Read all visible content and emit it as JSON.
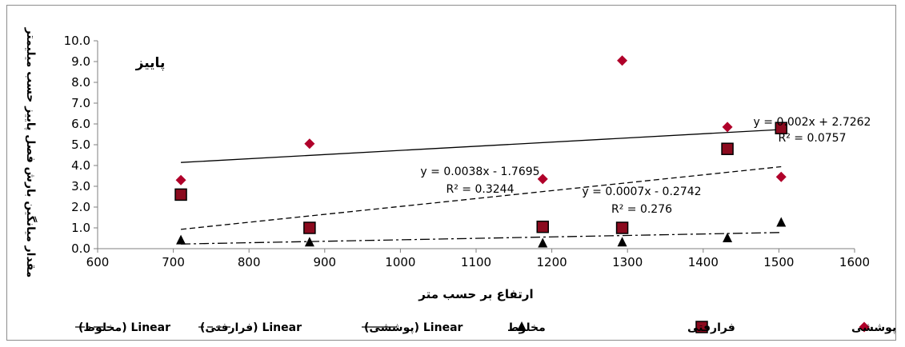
{
  "chart_data": {
    "type": "scatter",
    "title": "پاییز",
    "xlabel": "ارتفاع بر حسب متر",
    "ylabel": "مقدار میانگین بارش فصل پاییز حسب میلیمتر",
    "xlim": [
      600,
      1600
    ],
    "ylim": [
      0,
      10
    ],
    "xticks": [
      "600",
      "700",
      "800",
      "900",
      "1000",
      "1100",
      "1200",
      "1300",
      "1400",
      "1500",
      "1600"
    ],
    "yticks": [
      "0.0",
      "1.0",
      "2.0",
      "3.0",
      "4.0",
      "5.0",
      "6.0",
      "7.0",
      "8.0",
      "9.0",
      "10.0"
    ],
    "grid": false,
    "legend_position": "bottom",
    "series": [
      {
        "name": "پوششی",
        "marker": "diamond",
        "color": "#b0002a",
        "x": [
          710,
          880,
          1188,
          1293,
          1432,
          1503
        ],
        "y": [
          3.3,
          5.05,
          3.35,
          9.05,
          5.85,
          3.45
        ]
      },
      {
        "name": "فرارفتی",
        "marker": "square",
        "color": "#8b0a1e",
        "x": [
          710,
          880,
          1188,
          1293,
          1432,
          1503
        ],
        "y": [
          2.6,
          1.0,
          1.05,
          1.0,
          4.8,
          5.8
        ]
      },
      {
        "name": "مخلوط",
        "marker": "triangle",
        "color": "#000000",
        "x": [
          710,
          880,
          1188,
          1293,
          1432,
          1503
        ],
        "y": [
          0.4,
          0.3,
          0.25,
          0.3,
          0.5,
          1.25
        ]
      }
    ],
    "trendlines": [
      {
        "name": "Linear (پوششی)",
        "style": "solid",
        "slope": 0.002,
        "intercept": 2.7262,
        "x_range": [
          710,
          1503
        ],
        "equation": "y = 0.002x + 2.7262",
        "r2": "R² = 0.0757"
      },
      {
        "name": "Linear (فرارفتی)",
        "style": "dashed",
        "slope": 0.0038,
        "intercept": -1.7695,
        "x_range": [
          710,
          1503
        ],
        "equation": "y = 0.0038x - 1.7695",
        "r2": "R² = 0.3244"
      },
      {
        "name": "Linear (مخلوط)",
        "style": "dashdot",
        "slope": 0.0007,
        "intercept": -0.2742,
        "x_range": [
          710,
          1503
        ],
        "equation": "y = 0.0007x - 0.2742",
        "r2": "R² = 0.276"
      }
    ],
    "legend": [
      {
        "label": "پوششی",
        "kind": "diamond"
      },
      {
        "label": "فرارفتی",
        "kind": "square"
      },
      {
        "label": "مخلوط",
        "kind": "triangle"
      },
      {
        "label": "Linear (پوششی)",
        "kind": "solid"
      },
      {
        "label": "Linear (فرارفتی)",
        "kind": "dashed"
      },
      {
        "label": "Linear (مخلوط)",
        "kind": "dashdot"
      }
    ]
  }
}
